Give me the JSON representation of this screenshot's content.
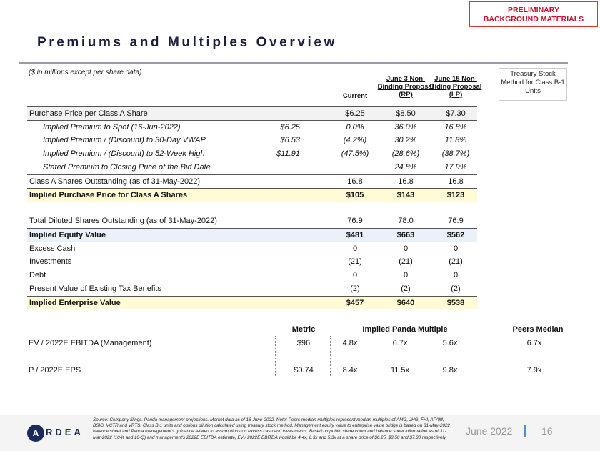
{
  "badge": {
    "line1": "PRELIMINARY",
    "line2": "BACKGROUND MATERIALS"
  },
  "title": "Premiums and Multiples Overview",
  "units_note": "($ in millions except per share data)",
  "columns": {
    "current": "Current",
    "rp": "June 3 Non-Binding Proposal (RP)",
    "lp": "June 15 Non-Biding Proposal (LP)"
  },
  "tsm_note": "Treasury Stock Method for Class B-1 Units",
  "rows": [
    {
      "label": "Purchase Price per Class A Share",
      "spot": "",
      "values": [
        "$6.25",
        "$8.50",
        "$7.30"
      ],
      "style": "grey sep"
    },
    {
      "label": "Implied Premium to Spot (16-Jun-2022)",
      "spot": "$6.25",
      "values": [
        "0.0%",
        "36.0%",
        "16.8%"
      ],
      "style": "ital sep"
    },
    {
      "label": "Implied Premium / (Discount) to 30-Day VWAP",
      "spot": "$6.53",
      "values": [
        "(4.2%)",
        "30.2%",
        "11.8%"
      ],
      "style": "ital"
    },
    {
      "label": "Implied Premium / (Discount) to 52-Week High",
      "spot": "$11.91",
      "values": [
        "(47.5%)",
        "(28.6%)",
        "(38.7%)"
      ],
      "style": "ital"
    },
    {
      "label": "Stated Premium to Closing Price of the Bid Date",
      "spot": "",
      "values": [
        "",
        "24.8%",
        "17.9%"
      ],
      "style": "ital"
    },
    {
      "label": "Class A Shares Outstanding (as of 31-May-2022)",
      "spot": "",
      "values": [
        "16.8",
        "16.8",
        "16.8"
      ],
      "style": "sep"
    },
    {
      "label": "Implied Purchase Price for Class A Shares",
      "spot": "",
      "values": [
        "$105",
        "$143",
        "$123"
      ],
      "style": "yellow sep"
    },
    {
      "label": "Total Diluted Shares Outstanding (as of 31-May-2022)",
      "spot": "",
      "values": [
        "76.9",
        "78.0",
        "76.9"
      ],
      "style": "gap"
    },
    {
      "label": "Implied Equity Value",
      "spot": "",
      "values": [
        "$481",
        "$663",
        "$562"
      ],
      "style": "blue sep"
    },
    {
      "label": "Excess Cash",
      "spot": "",
      "values": [
        "0",
        "0",
        "0"
      ],
      "style": "sep"
    },
    {
      "label": "Investments",
      "spot": "",
      "values": [
        "(21)",
        "(21)",
        "(21)"
      ],
      "style": ""
    },
    {
      "label": "Debt",
      "spot": "",
      "values": [
        "0",
        "0",
        "0"
      ],
      "style": ""
    },
    {
      "label": "Present Value of Existing Tax Benefits",
      "spot": "",
      "values": [
        "(2)",
        "(2)",
        "(2)"
      ],
      "style": ""
    },
    {
      "label": "Implied Enterprise Value",
      "spot": "",
      "values": [
        "$457",
        "$640",
        "$538"
      ],
      "style": "yellow sep"
    }
  ],
  "multiples": {
    "headers": {
      "metric": "Metric",
      "implied": "Implied Panda Multiple",
      "peers": "Peers Median"
    },
    "rows": [
      {
        "label": "EV / 2022E EBITDA (Management)",
        "metric": "$96",
        "values": [
          "4.8x",
          "6.7x",
          "5.6x"
        ],
        "peers": "6.7x"
      },
      {
        "label": "P / 2022E EPS",
        "metric": "$0.74",
        "values": [
          "8.4x",
          "11.5x",
          "9.8x"
        ],
        "peers": "7.9x"
      }
    ]
  },
  "footer": {
    "logo_letter": "A",
    "logo_rest": "RDEA",
    "note": "Source: Company filings. Panda management projections. Market data as of 16-June-2022. Note: Peers median multiples represent median multiples of AMG, JHG, FHI, APAM, BSIG, VCTR and VRTS. Class B-1 units and options dilution calculated using treasury stock method. Management equity value to enterprise value bridge is based on 31-May-2022 balance sheet and Panda management's guidance related to assumptions on excess cash and investments. Based on public share count and balance sheet information as of 31-Mar-2022 (10-K and 10-Q) and management's 2022E EBITDA estimate, EV / 2022E EBITDA would be 4.4x, 6.3x and 5.3x at a share price of $6.25, $8.50 and $7.30 respectively.",
    "date": "June 2022",
    "page": "16"
  }
}
